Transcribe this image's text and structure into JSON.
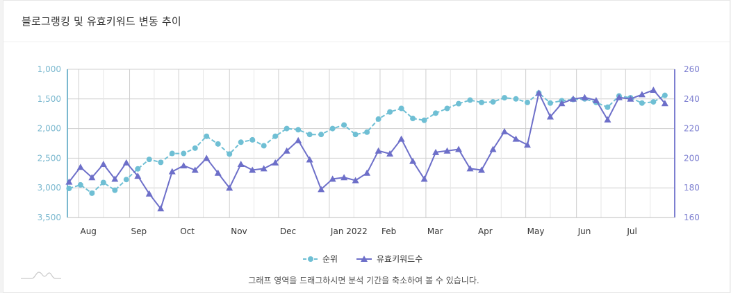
{
  "card": {
    "title": "블로그랭킹 및 유효키워드 변동 추이"
  },
  "hint": "그래프 영역을 드래그하시면 분석 기간을 축소하여 볼 수 있습니다.",
  "colors": {
    "rank": "#6fbfd4",
    "keywords": "#6d6fc9",
    "grid": "#cfcfcf",
    "leftAxis": "#7ab8cf",
    "rightAxis": "#7d7fd0"
  },
  "chart_data": {
    "type": "line",
    "x_tick_labels": [
      "Aug",
      "Sep",
      "Oct",
      "Nov",
      "Dec",
      "Jan 2022",
      "Feb",
      "Mar",
      "Apr",
      "May",
      "Jun",
      "Jul"
    ],
    "x_range": [
      "2021-07-25",
      "2022-07-31"
    ],
    "y_left": {
      "label": "",
      "ticks": [
        "1,000",
        "1,500",
        "2,000",
        "2,500",
        "3,000",
        "3,500"
      ],
      "range": [
        1000,
        3500
      ],
      "reversed": true
    },
    "y_right": {
      "label": "",
      "ticks": [
        "260",
        "240",
        "220",
        "200",
        "180",
        "160"
      ],
      "range": [
        160,
        260
      ]
    },
    "grid": true,
    "legend_position": "bottom",
    "series": [
      {
        "name": "순위",
        "axis": "left",
        "marker": "circle",
        "dash": true,
        "points": [
          [
            "2021-07-26",
            3010
          ],
          [
            "2021-08-02",
            2950
          ],
          [
            "2021-08-09",
            3090
          ],
          [
            "2021-08-16",
            2910
          ],
          [
            "2021-08-23",
            3040
          ],
          [
            "2021-08-30",
            2860
          ],
          [
            "2021-09-06",
            2680
          ],
          [
            "2021-09-13",
            2520
          ],
          [
            "2021-09-20",
            2570
          ],
          [
            "2021-09-27",
            2420
          ],
          [
            "2021-10-04",
            2420
          ],
          [
            "2021-10-11",
            2330
          ],
          [
            "2021-10-18",
            2130
          ],
          [
            "2021-10-25",
            2260
          ],
          [
            "2021-11-01",
            2430
          ],
          [
            "2021-11-08",
            2230
          ],
          [
            "2021-11-15",
            2190
          ],
          [
            "2021-11-22",
            2290
          ],
          [
            "2021-11-29",
            2130
          ],
          [
            "2021-12-06",
            2000
          ],
          [
            "2021-12-13",
            2020
          ],
          [
            "2021-12-20",
            2100
          ],
          [
            "2021-12-27",
            2100
          ],
          [
            "2022-01-03",
            2000
          ],
          [
            "2022-01-10",
            1940
          ],
          [
            "2022-01-17",
            2100
          ],
          [
            "2022-01-24",
            2060
          ],
          [
            "2022-01-31",
            1840
          ],
          [
            "2022-02-07",
            1720
          ],
          [
            "2022-02-14",
            1660
          ],
          [
            "2022-02-21",
            1830
          ],
          [
            "2022-02-28",
            1860
          ],
          [
            "2022-03-07",
            1740
          ],
          [
            "2022-03-14",
            1660
          ],
          [
            "2022-03-21",
            1580
          ],
          [
            "2022-03-28",
            1520
          ],
          [
            "2022-04-04",
            1560
          ],
          [
            "2022-04-11",
            1550
          ],
          [
            "2022-04-18",
            1480
          ],
          [
            "2022-04-25",
            1500
          ],
          [
            "2022-05-02",
            1560
          ],
          [
            "2022-05-09",
            1400
          ],
          [
            "2022-05-16",
            1570
          ],
          [
            "2022-05-23",
            1530
          ],
          [
            "2022-05-30",
            1510
          ],
          [
            "2022-06-06",
            1500
          ],
          [
            "2022-06-13",
            1560
          ],
          [
            "2022-06-20",
            1640
          ],
          [
            "2022-06-27",
            1450
          ],
          [
            "2022-07-04",
            1480
          ],
          [
            "2022-07-11",
            1570
          ],
          [
            "2022-07-18",
            1550
          ],
          [
            "2022-07-25",
            1440
          ]
        ]
      },
      {
        "name": "유효키워드수",
        "axis": "right",
        "marker": "triangle",
        "dash": false,
        "points": [
          [
            "2021-07-26",
            184
          ],
          [
            "2021-08-02",
            194
          ],
          [
            "2021-08-09",
            187
          ],
          [
            "2021-08-16",
            196
          ],
          [
            "2021-08-23",
            186
          ],
          [
            "2021-08-30",
            197
          ],
          [
            "2021-09-06",
            188
          ],
          [
            "2021-09-13",
            176
          ],
          [
            "2021-09-20",
            166
          ],
          [
            "2021-09-27",
            191
          ],
          [
            "2021-10-04",
            195
          ],
          [
            "2021-10-11",
            192
          ],
          [
            "2021-10-18",
            200
          ],
          [
            "2021-10-25",
            190
          ],
          [
            "2021-11-01",
            180
          ],
          [
            "2021-11-08",
            196
          ],
          [
            "2021-11-15",
            192
          ],
          [
            "2021-11-22",
            193
          ],
          [
            "2021-11-29",
            197
          ],
          [
            "2021-12-06",
            205
          ],
          [
            "2021-12-13",
            212
          ],
          [
            "2021-12-20",
            199
          ],
          [
            "2021-12-27",
            179
          ],
          [
            "2022-01-03",
            186
          ],
          [
            "2022-01-10",
            187
          ],
          [
            "2022-01-17",
            185
          ],
          [
            "2022-01-24",
            190
          ],
          [
            "2022-01-31",
            205
          ],
          [
            "2022-02-07",
            203
          ],
          [
            "2022-02-14",
            213
          ],
          [
            "2022-02-21",
            198
          ],
          [
            "2022-02-28",
            186
          ],
          [
            "2022-03-07",
            204
          ],
          [
            "2022-03-14",
            205
          ],
          [
            "2022-03-21",
            206
          ],
          [
            "2022-03-28",
            193
          ],
          [
            "2022-04-04",
            192
          ],
          [
            "2022-04-11",
            206
          ],
          [
            "2022-04-18",
            218
          ],
          [
            "2022-04-25",
            213
          ],
          [
            "2022-05-02",
            209
          ],
          [
            "2022-05-09",
            244
          ],
          [
            "2022-05-16",
            228
          ],
          [
            "2022-05-23",
            237
          ],
          [
            "2022-05-30",
            240
          ],
          [
            "2022-06-06",
            241
          ],
          [
            "2022-06-13",
            239
          ],
          [
            "2022-06-20",
            226
          ],
          [
            "2022-06-27",
            241
          ],
          [
            "2022-07-04",
            240
          ],
          [
            "2022-07-11",
            243
          ],
          [
            "2022-07-18",
            246
          ],
          [
            "2022-07-25",
            237
          ]
        ]
      }
    ]
  }
}
